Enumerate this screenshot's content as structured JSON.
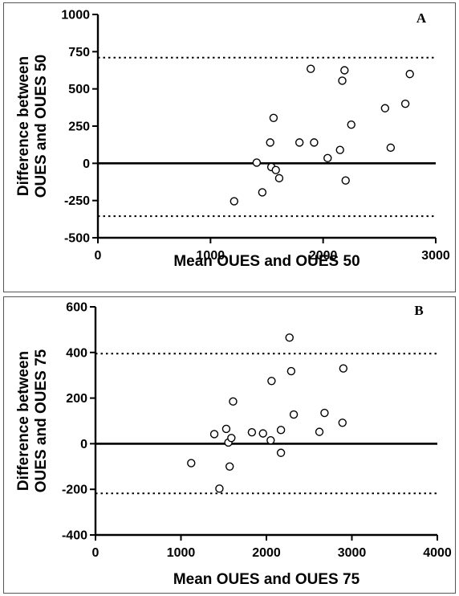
{
  "chart_data": [
    {
      "type": "scatter",
      "panel_label": "A",
      "xlabel": "Mean OUES and OUES 50",
      "ylabel_lines": [
        "Difference between",
        "OUES and OUES 50"
      ],
      "xlim": [
        0,
        3000
      ],
      "ylim": [
        -500,
        1000
      ],
      "xticks": [
        0,
        1000,
        2000,
        3000
      ],
      "yticks": [
        -500,
        -250,
        0,
        250,
        500,
        750,
        1000
      ],
      "zero_line": 0,
      "limits_of_agreement": [
        710,
        -355
      ],
      "points": [
        {
          "x": 1210,
          "y": -255
        },
        {
          "x": 1410,
          "y": 5
        },
        {
          "x": 1460,
          "y": -195
        },
        {
          "x": 1530,
          "y": 140
        },
        {
          "x": 1540,
          "y": -25
        },
        {
          "x": 1560,
          "y": 305
        },
        {
          "x": 1580,
          "y": -45
        },
        {
          "x": 1610,
          "y": -100
        },
        {
          "x": 1790,
          "y": 140
        },
        {
          "x": 1890,
          "y": 635
        },
        {
          "x": 1920,
          "y": 140
        },
        {
          "x": 2040,
          "y": 35
        },
        {
          "x": 2150,
          "y": 90
        },
        {
          "x": 2170,
          "y": 555
        },
        {
          "x": 2190,
          "y": 625
        },
        {
          "x": 2200,
          "y": -115
        },
        {
          "x": 2250,
          "y": 260
        },
        {
          "x": 2550,
          "y": 370
        },
        {
          "x": 2600,
          "y": 105
        },
        {
          "x": 2730,
          "y": 400
        },
        {
          "x": 2770,
          "y": 600
        }
      ]
    },
    {
      "type": "scatter",
      "panel_label": "B",
      "xlabel": "Mean OUES and OUES 75",
      "ylabel_lines": [
        "Difference between",
        "OUES and OUES 75"
      ],
      "xlim": [
        0,
        4000
      ],
      "ylim": [
        -400,
        600
      ],
      "xticks": [
        0,
        1000,
        2000,
        3000,
        4000
      ],
      "yticks": [
        -400,
        -200,
        0,
        200,
        400,
        600
      ],
      "zero_line": 0,
      "limits_of_agreement": [
        395,
        -218
      ],
      "points": [
        {
          "x": 1120,
          "y": -85
        },
        {
          "x": 1390,
          "y": 42
        },
        {
          "x": 1450,
          "y": -197
        },
        {
          "x": 1530,
          "y": 65
        },
        {
          "x": 1555,
          "y": 5
        },
        {
          "x": 1570,
          "y": -100
        },
        {
          "x": 1590,
          "y": 25
        },
        {
          "x": 1610,
          "y": 185
        },
        {
          "x": 1830,
          "y": 50
        },
        {
          "x": 1960,
          "y": 45
        },
        {
          "x": 2050,
          "y": 15
        },
        {
          "x": 2060,
          "y": 275
        },
        {
          "x": 2170,
          "y": 60
        },
        {
          "x": 2170,
          "y": -40
        },
        {
          "x": 2270,
          "y": 465
        },
        {
          "x": 2290,
          "y": 318
        },
        {
          "x": 2320,
          "y": 128
        },
        {
          "x": 2620,
          "y": 52
        },
        {
          "x": 2680,
          "y": 135
        },
        {
          "x": 2890,
          "y": 92
        },
        {
          "x": 2900,
          "y": 330
        }
      ]
    }
  ]
}
